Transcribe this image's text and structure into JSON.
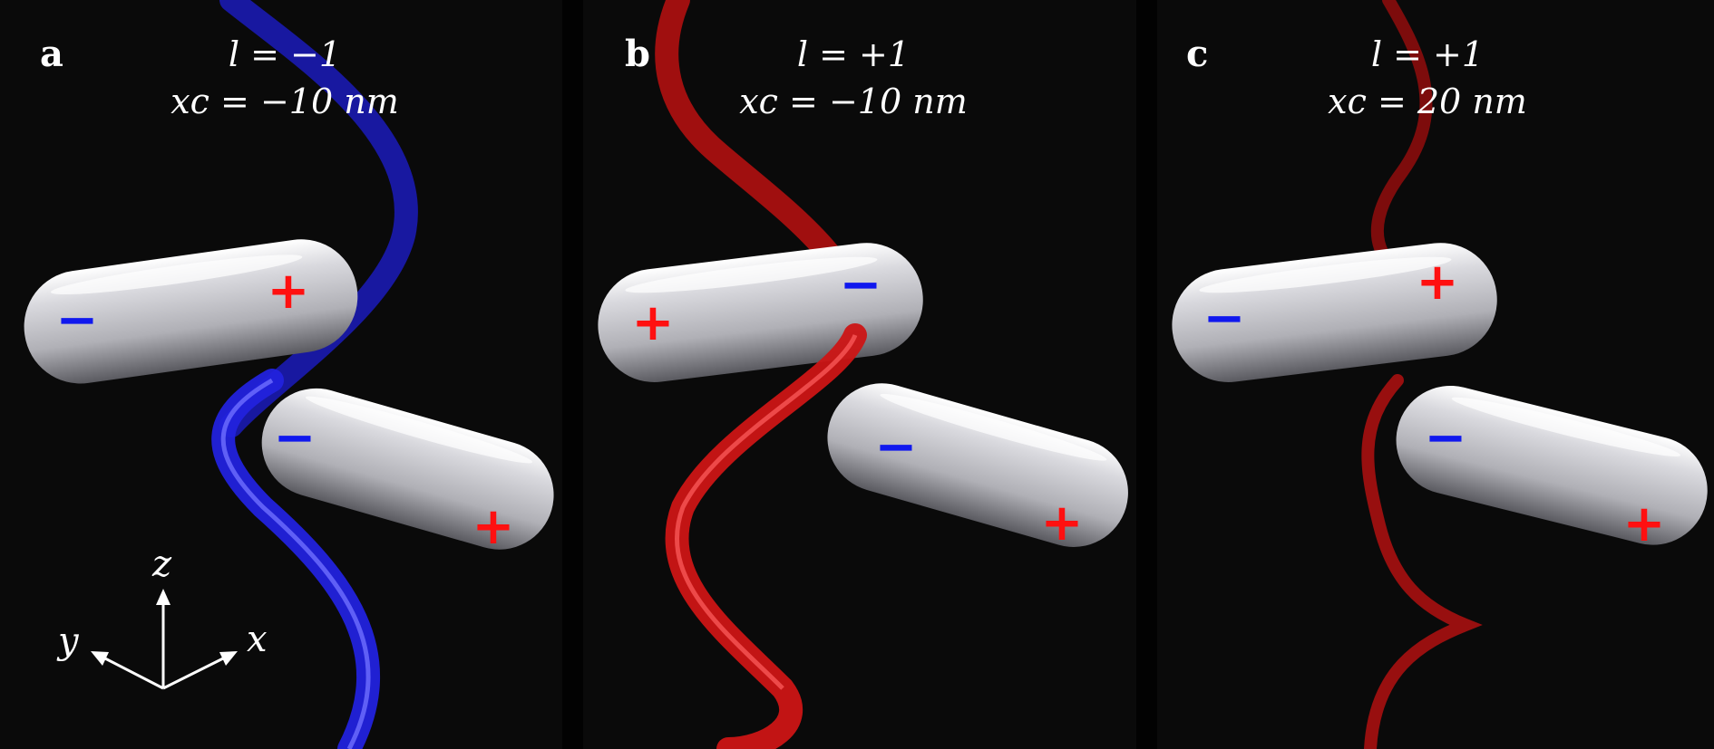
{
  "panels": [
    {
      "id": "a",
      "letter": "a",
      "l_text": "l = −1",
      "xc_text": "xc = −10 nm",
      "helix_color": "#2222dd",
      "rods": [
        {
          "left_sign": "−",
          "right_sign": "+"
        },
        {
          "left_sign": "−",
          "right_sign": "+"
        }
      ]
    },
    {
      "id": "b",
      "letter": "b",
      "l_text": "l = +1",
      "xc_text": "xc = −10 nm",
      "helix_color": "#cc1515",
      "rods": [
        {
          "left_sign": "+",
          "right_sign": "−"
        },
        {
          "left_sign": "−",
          "right_sign": "+"
        }
      ]
    },
    {
      "id": "c",
      "letter": "c",
      "l_text": "l = +1",
      "xc_text": "xc = 20 nm",
      "helix_color": "#a01010",
      "rods": [
        {
          "left_sign": "−",
          "right_sign": "+"
        },
        {
          "left_sign": "−",
          "right_sign": "+"
        }
      ]
    }
  ],
  "axes": {
    "z": "z",
    "y": "y",
    "x": "x"
  },
  "colors": {
    "plus": "#ff1010",
    "minus": "#1018ee",
    "rod": "#d8d8dc",
    "background": "#0a0a0a"
  }
}
